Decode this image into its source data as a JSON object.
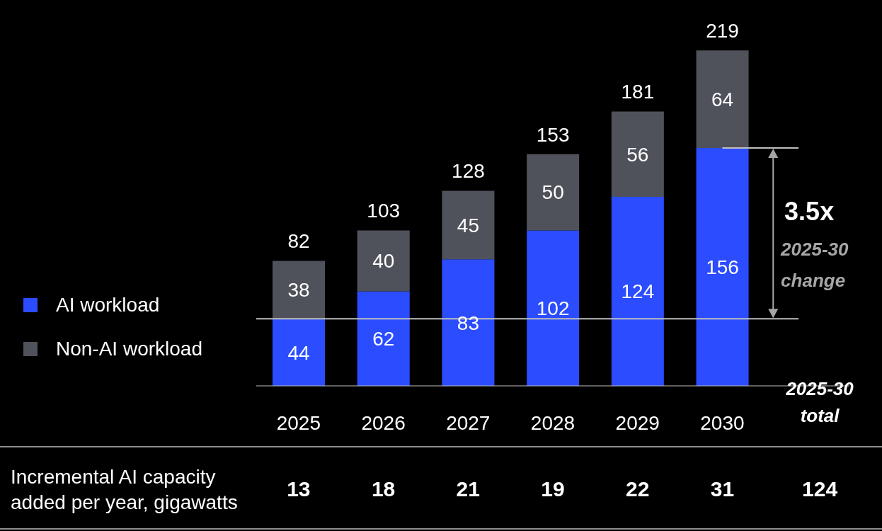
{
  "chart_data": {
    "type": "bar",
    "stacked": true,
    "categories": [
      "2025",
      "2026",
      "2027",
      "2028",
      "2029",
      "2030"
    ],
    "series": [
      {
        "name": "AI workload",
        "color": "#2b4cff",
        "values": [
          44,
          62,
          83,
          102,
          124,
          156
        ]
      },
      {
        "name": "Non-AI workload",
        "color": "#4f525a",
        "values": [
          38,
          40,
          45,
          50,
          56,
          64
        ]
      }
    ],
    "totals": [
      "82",
      "103",
      "128",
      "153",
      "181",
      "219"
    ],
    "data_labels": true,
    "tick_labels": "x",
    "legend": "left",
    "ref_lines": [
      {
        "axis": "y",
        "value": 44,
        "color": "#bfbfbf"
      },
      {
        "axis": "y",
        "value": 156,
        "color": "#bfbfbf"
      }
    ],
    "annotations": [
      "3.5x",
      "2025-30 change",
      "2025-30 total",
      "Incremental AI capacity added per year, gigawatts",
      "13",
      "18",
      "21",
      "19",
      "22",
      "31",
      "124"
    ]
  }
}
